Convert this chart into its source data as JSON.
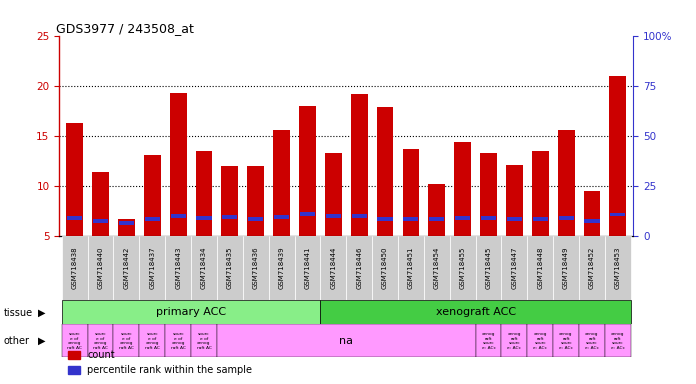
{
  "title": "GDS3977 / 243508_at",
  "samples": [
    "GSM718438",
    "GSM718440",
    "GSM718442",
    "GSM718437",
    "GSM718443",
    "GSM718434",
    "GSM718435",
    "GSM718436",
    "GSM718439",
    "GSM718441",
    "GSM718444",
    "GSM718446",
    "GSM718450",
    "GSM718451",
    "GSM718454",
    "GSM718455",
    "GSM718445",
    "GSM718447",
    "GSM718448",
    "GSM718449",
    "GSM718452",
    "GSM718453"
  ],
  "counts": [
    16.3,
    11.4,
    6.7,
    13.1,
    19.3,
    13.5,
    12.0,
    12.0,
    15.6,
    18.0,
    13.3,
    19.2,
    17.9,
    13.7,
    10.2,
    14.4,
    13.3,
    12.1,
    13.5,
    15.6,
    9.5,
    21.0
  ],
  "percentile_ranks": [
    9.0,
    7.5,
    6.7,
    8.5,
    10.0,
    9.0,
    9.5,
    8.5,
    9.5,
    11.0,
    10.2,
    10.0,
    8.5,
    8.5,
    8.5,
    9.0,
    9.0,
    8.5,
    8.5,
    9.0,
    7.5,
    10.8
  ],
  "ylim_left": [
    5,
    25
  ],
  "ylim_right": [
    0,
    100
  ],
  "yticks_left": [
    5,
    10,
    15,
    20,
    25
  ],
  "yticks_right": [
    0,
    25,
    50,
    75,
    100
  ],
  "bar_color": "#CC0000",
  "blue_color": "#3333CC",
  "bg_color": "#FFFFFF",
  "ylabel_left_color": "#CC0000",
  "ylabel_right_color": "#3333CC",
  "primary_count": 10,
  "xeno_count": 12,
  "primary_color": "#88EE88",
  "xeno_color": "#44CC44",
  "other_color": "#FF99FF",
  "label_gray": "#BBBBBB",
  "other_primary_count": 6,
  "other_xeno_count": 6
}
